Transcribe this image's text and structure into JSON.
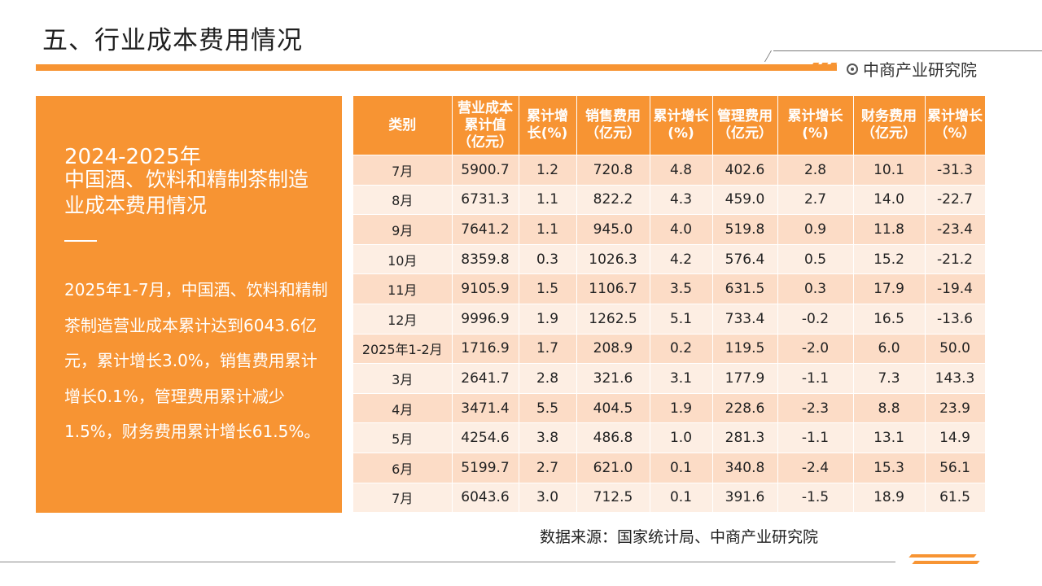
{
  "header": {
    "title": "五、行业成本费用情况",
    "brand": "中商产业研究院"
  },
  "side_panel": {
    "year": "2024-2025年",
    "heading": "中国酒、饮料和精制茶制造业成本费用情况",
    "body": "2025年1-7月，中国酒、饮料和精制茶制造营业成本累计达到6043.6亿元，累计增长3.0%，销售费用累计增长0.1%，管理费用累计减少1.5%，财务费用累计增长61.5%。"
  },
  "table": {
    "headers": [
      "类别",
      "营业成本累计值（亿元）",
      "累计增长(%)",
      "销售费用（亿元）",
      "累计增长(%)",
      "管理费用（亿元）",
      "累计增长(%)",
      "财务费用（亿元）",
      "累计增长（%）"
    ],
    "rows": [
      [
        "7月",
        "5900.7",
        "1.2",
        "720.8",
        "4.8",
        "402.6",
        "2.8",
        "10.1",
        "-31.3"
      ],
      [
        "8月",
        "6731.3",
        "1.1",
        "822.2",
        "4.3",
        "459.0",
        "2.7",
        "14.0",
        "-22.7"
      ],
      [
        "9月",
        "7641.2",
        "1.1",
        "945.0",
        "4.0",
        "519.8",
        "0.9",
        "11.8",
        "-23.4"
      ],
      [
        "10月",
        "8359.8",
        "0.3",
        "1026.3",
        "4.2",
        "576.4",
        "0.5",
        "15.2",
        "-21.2"
      ],
      [
        "11月",
        "9105.9",
        "1.5",
        "1106.7",
        "3.5",
        "631.5",
        "0.3",
        "17.9",
        "-19.4"
      ],
      [
        "12月",
        "9996.9",
        "1.9",
        "1262.5",
        "5.1",
        "733.4",
        "-0.2",
        "16.5",
        "-13.6"
      ],
      [
        "2025年1-2月",
        "1716.9",
        "1.7",
        "208.9",
        "0.2",
        "119.5",
        "-2.0",
        "6.0",
        "50.0"
      ],
      [
        "3月",
        "2641.7",
        "2.8",
        "321.6",
        "3.1",
        "177.9",
        "-1.1",
        "7.3",
        "143.3"
      ],
      [
        "4月",
        "3471.4",
        "5.5",
        "404.5",
        "1.9",
        "228.6",
        "-2.3",
        "8.8",
        "23.9"
      ],
      [
        "5月",
        "4254.6",
        "3.8",
        "486.8",
        "1.0",
        "281.3",
        "-1.1",
        "13.1",
        "14.9"
      ],
      [
        "6月",
        "5199.7",
        "2.7",
        "621.0",
        "0.1",
        "340.8",
        "-2.4",
        "15.3",
        "56.1"
      ],
      [
        "7月",
        "6043.6",
        "3.0",
        "712.5",
        "0.1",
        "391.6",
        "-1.5",
        "18.9",
        "61.5"
      ]
    ]
  },
  "footer": {
    "source": "数据来源：国家统计局、中商产业研究院"
  },
  "colors": {
    "accent": "#f79433",
    "row_odd": "#fcdcc6",
    "row_even": "#fdeee3"
  }
}
